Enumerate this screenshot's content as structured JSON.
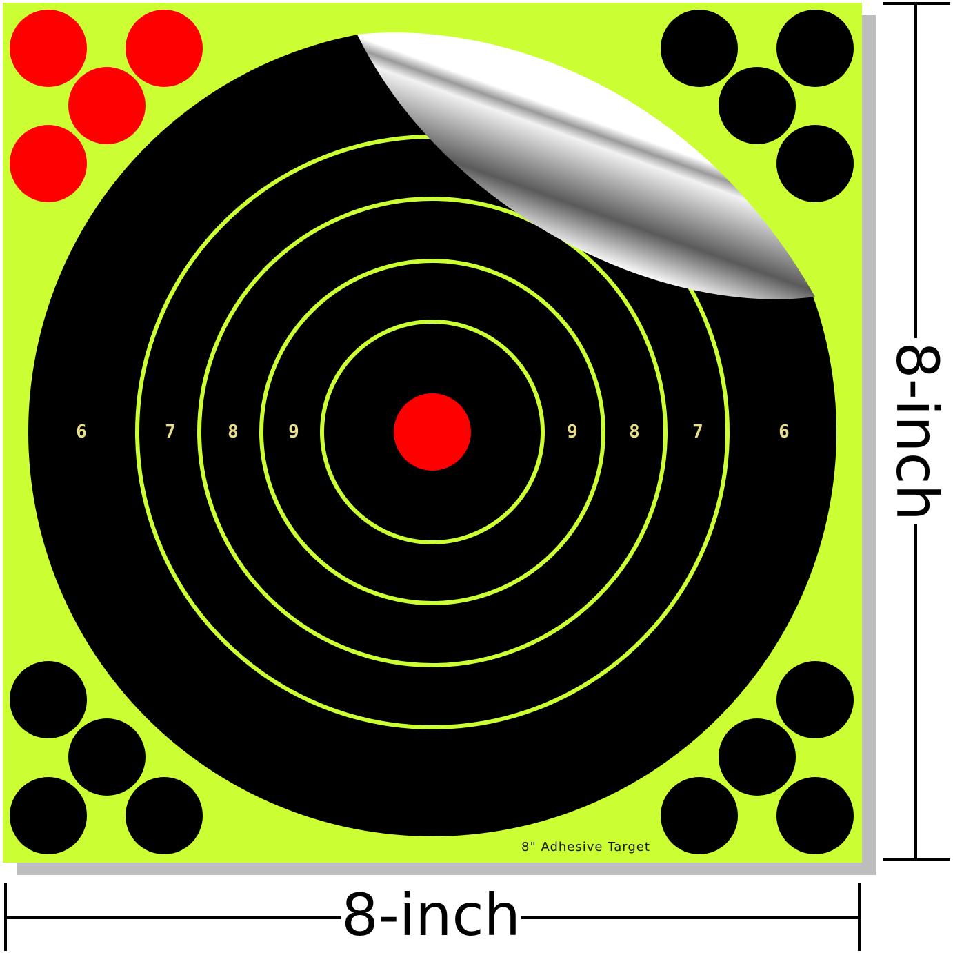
{
  "product": {
    "label": "8\" Adhesive Target",
    "ring_labels_left": [
      "6",
      "7",
      "8",
      "9"
    ],
    "ring_labels_right": [
      "9",
      "8",
      "7",
      "6"
    ]
  },
  "dimensions": {
    "width_label": "8-inch",
    "height_label": "8-inch"
  },
  "colors": {
    "background": "#ccff33",
    "target": "#000000",
    "ring": "#ccff33",
    "bullseye": "#ff0000",
    "pasters_red": "#ff0000",
    "pasters_black": "#000000",
    "numbers": "#e8de8c"
  }
}
